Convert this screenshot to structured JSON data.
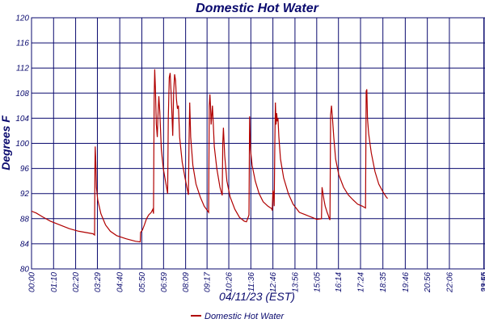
{
  "chart_data": {
    "type": "line",
    "title": "Domestic Hot Water",
    "xlabel": "04/11/23 (EST)",
    "ylabel": "Degrees F",
    "ylim": [
      80,
      120
    ],
    "yticks": [
      80,
      84,
      88,
      92,
      96,
      100,
      104,
      108,
      112,
      116,
      120
    ],
    "xlim": [
      0,
      1439
    ],
    "xticks": [
      {
        "t": 0,
        "label": "00:00"
      },
      {
        "t": 70,
        "label": "01:10"
      },
      {
        "t": 140,
        "label": "02:20"
      },
      {
        "t": 209,
        "label": "03:29"
      },
      {
        "t": 280,
        "label": "04:40"
      },
      {
        "t": 350,
        "label": "05:50"
      },
      {
        "t": 419,
        "label": "06:59"
      },
      {
        "t": 489,
        "label": "08:09"
      },
      {
        "t": 557,
        "label": "09:17"
      },
      {
        "t": 626,
        "label": "10:26"
      },
      {
        "t": 696,
        "label": "11:36"
      },
      {
        "t": 766,
        "label": "12:46"
      },
      {
        "t": 836,
        "label": "13:56"
      },
      {
        "t": 905,
        "label": "15:05"
      },
      {
        "t": 974,
        "label": "16:14"
      },
      {
        "t": 1044,
        "label": "17:24"
      },
      {
        "t": 1115,
        "label": "18:35"
      },
      {
        "t": 1186,
        "label": "19:46"
      },
      {
        "t": 1256,
        "label": "20:56"
      },
      {
        "t": 1326,
        "label": "22:06"
      },
      {
        "t": 1435,
        "label": "23:55"
      },
      {
        "t": 1439,
        "label": "23:59"
      }
    ],
    "grid": true,
    "legend_position": "bottom",
    "series": [
      {
        "name": "Domestic Hot Water",
        "color": "#b00000",
        "points": [
          [
            0,
            89.2
          ],
          [
            15,
            88.9
          ],
          [
            35,
            88.3
          ],
          [
            60,
            87.6
          ],
          [
            90,
            87.0
          ],
          [
            120,
            86.4
          ],
          [
            150,
            86.0
          ],
          [
            195,
            85.6
          ],
          [
            200,
            85.4
          ],
          [
            201,
            96.0
          ],
          [
            202,
            99.5
          ],
          [
            204,
            97.0
          ],
          [
            206,
            93.0
          ],
          [
            210,
            91.0
          ],
          [
            220,
            88.8
          ],
          [
            235,
            87.0
          ],
          [
            250,
            86.0
          ],
          [
            270,
            85.3
          ],
          [
            300,
            84.8
          ],
          [
            330,
            84.4
          ],
          [
            345,
            84.3
          ],
          [
            346,
            85.8
          ],
          [
            352,
            86.2
          ],
          [
            358,
            87.0
          ],
          [
            365,
            88.0
          ],
          [
            372,
            88.6
          ],
          [
            380,
            89.0
          ],
          [
            385,
            89.5
          ],
          [
            387,
            88.8
          ],
          [
            389,
            107.0
          ],
          [
            391,
            111.8
          ],
          [
            393,
            109.0
          ],
          [
            396,
            103.0
          ],
          [
            399,
            101.0
          ],
          [
            401,
            104.0
          ],
          [
            404,
            107.5
          ],
          [
            407,
            105.0
          ],
          [
            412,
            99.0
          ],
          [
            418,
            96.0
          ],
          [
            425,
            94.0
          ],
          [
            432,
            92.0
          ],
          [
            434,
            104.0
          ],
          [
            437,
            110.5
          ],
          [
            440,
            111.2
          ],
          [
            443,
            108.0
          ],
          [
            446,
            104.0
          ],
          [
            448,
            101.2
          ],
          [
            451,
            108.0
          ],
          [
            454,
            111.0
          ],
          [
            457,
            110.0
          ],
          [
            460,
            107.0
          ],
          [
            463,
            105.5
          ],
          [
            466,
            106.0
          ],
          [
            470,
            101.0
          ],
          [
            478,
            97.0
          ],
          [
            487,
            94.5
          ],
          [
            495,
            92.5
          ],
          [
            498,
            91.8
          ],
          [
            500,
            100.5
          ],
          [
            502,
            106.5
          ],
          [
            505,
            101.0
          ],
          [
            512,
            96.5
          ],
          [
            522,
            93.5
          ],
          [
            535,
            91.5
          ],
          [
            548,
            90.0
          ],
          [
            558,
            89.3
          ],
          [
            562,
            89.0
          ],
          [
            564,
            106.0
          ],
          [
            566,
            107.8
          ],
          [
            568,
            106.0
          ],
          [
            570,
            103.0
          ],
          [
            572,
            104.5
          ],
          [
            574,
            106.0
          ],
          [
            577,
            103.0
          ],
          [
            580,
            99.5
          ],
          [
            588,
            96.0
          ],
          [
            598,
            93.0
          ],
          [
            605,
            91.7
          ],
          [
            607,
            100.0
          ],
          [
            609,
            102.5
          ],
          [
            613,
            98.0
          ],
          [
            620,
            94.0
          ],
          [
            630,
            91.5
          ],
          [
            645,
            89.5
          ],
          [
            660,
            88.2
          ],
          [
            675,
            87.6
          ],
          [
            682,
            87.5
          ],
          [
            688,
            88.3
          ],
          [
            690,
            88.6
          ],
          [
            692,
            104.3
          ],
          [
            695,
            99.0
          ],
          [
            700,
            96.5
          ],
          [
            710,
            94.0
          ],
          [
            722,
            92.0
          ],
          [
            735,
            90.7
          ],
          [
            750,
            90.0
          ],
          [
            762,
            89.6
          ],
          [
            764,
            89.3
          ],
          [
            766,
            92.5
          ],
          [
            768,
            92.0
          ],
          [
            770,
            90.0
          ],
          [
            772,
            100.0
          ],
          [
            774,
            106.5
          ],
          [
            776,
            103.0
          ],
          [
            778,
            104.8
          ],
          [
            780,
            103.5
          ],
          [
            782,
            104.0
          ],
          [
            785,
            101.0
          ],
          [
            790,
            97.5
          ],
          [
            800,
            94.5
          ],
          [
            815,
            92.0
          ],
          [
            830,
            90.3
          ],
          [
            850,
            89.0
          ],
          [
            870,
            88.6
          ],
          [
            890,
            88.2
          ],
          [
            905,
            87.9
          ],
          [
            920,
            88.0
          ],
          [
            922,
            93.0
          ],
          [
            925,
            92.0
          ],
          [
            928,
            91.0
          ],
          [
            932,
            90.0
          ],
          [
            938,
            89.0
          ],
          [
            942,
            88.5
          ],
          [
            945,
            88.0
          ],
          [
            947,
            87.8
          ],
          [
            949,
            104.5
          ],
          [
            952,
            106.0
          ],
          [
            955,
            104.0
          ],
          [
            959,
            101.0
          ],
          [
            965,
            97.5
          ],
          [
            975,
            95.0
          ],
          [
            990,
            93.0
          ],
          [
            1005,
            91.8
          ],
          [
            1020,
            91.0
          ],
          [
            1035,
            90.3
          ],
          [
            1050,
            90.0
          ],
          [
            1060,
            89.7
          ],
          [
            1062,
            108.3
          ],
          [
            1064,
            108.6
          ],
          [
            1066,
            104.0
          ],
          [
            1070,
            101.5
          ],
          [
            1078,
            98.5
          ],
          [
            1090,
            95.5
          ],
          [
            1102,
            93.5
          ],
          [
            1115,
            92.3
          ],
          [
            1125,
            91.5
          ],
          [
            1130,
            91.2
          ]
        ]
      }
    ]
  }
}
